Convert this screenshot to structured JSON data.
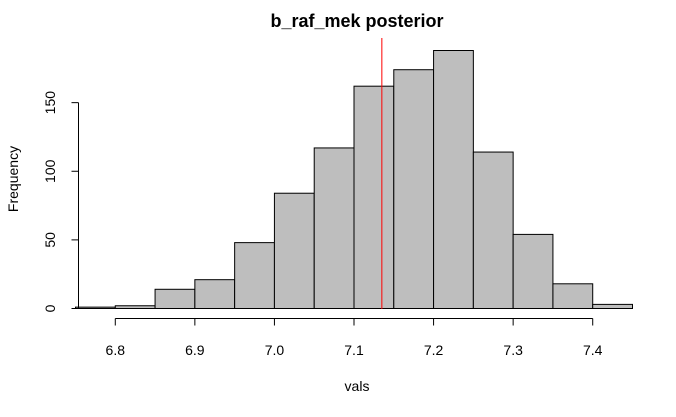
{
  "chart_data": {
    "type": "bar",
    "title": "b_raf_mek posterior",
    "xlabel": "vals",
    "ylabel": "Frequency",
    "bin_edges": [
      6.75,
      6.8,
      6.85,
      6.9,
      6.95,
      7.0,
      7.05,
      7.1,
      7.15,
      7.2,
      7.25,
      7.3,
      7.35,
      7.4,
      7.45
    ],
    "values": [
      1,
      2,
      14,
      21,
      48,
      84,
      117,
      162,
      174,
      188,
      114,
      54,
      18,
      3
    ],
    "x_ticks": [
      "6.8",
      "6.9",
      "7.0",
      "7.1",
      "7.2",
      "7.3",
      "7.4"
    ],
    "y_ticks": [
      "0",
      "50",
      "100",
      "150"
    ],
    "xlim": [
      6.75,
      7.45
    ],
    "ylim": [
      0,
      188
    ],
    "vline": {
      "x": 7.135,
      "color": "#ff0000"
    },
    "bar_fill": "#bebebe",
    "bar_stroke": "#000000",
    "grid": false,
    "legend": "none"
  }
}
